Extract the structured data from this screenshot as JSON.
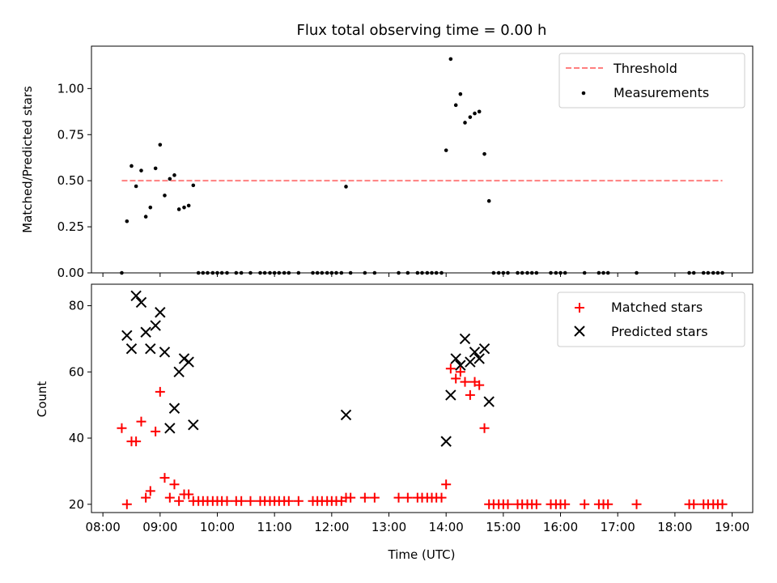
{
  "figure": {
    "title": "Flux total observing time = 0.00 h",
    "xlabel": "Time (UTC)"
  },
  "x_ticks": [
    "08:00",
    "09:00",
    "10:00",
    "11:00",
    "12:00",
    "13:00",
    "14:00",
    "15:00",
    "16:00",
    "17:00",
    "18:00",
    "19:00"
  ],
  "chart_data": [
    {
      "type": "scatter",
      "ylabel": "Matched/Predicted stars",
      "xlim": [
        7.8,
        19.36
      ],
      "ylim": [
        0,
        1.23
      ],
      "y_ticks": [
        "0.00",
        "0.25",
        "0.50",
        "0.75",
        "1.00"
      ],
      "legend_position": "top-right",
      "threshold": {
        "name": "Threshold",
        "y": 0.5,
        "x_range": [
          8.33,
          18.83
        ],
        "color": "#ff7f7f"
      },
      "series": [
        {
          "name": "Measurements",
          "color": "#000000",
          "x": [
            8.33,
            8.42,
            8.5,
            8.58,
            8.67,
            8.75,
            8.83,
            8.92,
            9.0,
            9.08,
            9.17,
            9.25,
            9.33,
            9.42,
            9.5,
            9.58,
            9.67,
            9.75,
            9.83,
            9.92,
            10.0,
            10.08,
            10.17,
            10.33,
            10.42,
            10.58,
            10.75,
            10.83,
            10.92,
            11.0,
            11.08,
            11.17,
            11.25,
            11.42,
            11.67,
            11.75,
            11.83,
            11.92,
            12.0,
            12.08,
            12.17,
            12.25,
            12.33,
            12.58,
            12.75,
            13.17,
            13.33,
            13.5,
            13.58,
            13.67,
            13.75,
            13.83,
            13.92,
            14.0,
            14.08,
            14.17,
            14.25,
            14.33,
            14.42,
            14.5,
            14.58,
            14.67,
            14.75,
            14.83,
            14.92,
            15.0,
            15.08,
            15.25,
            15.33,
            15.42,
            15.5,
            15.58,
            15.83,
            15.92,
            16.0,
            16.08,
            16.42,
            16.67,
            16.75,
            16.83,
            17.33,
            18.25,
            18.33,
            18.5,
            18.58,
            18.67,
            18.75,
            18.83
          ],
          "y": [
            0.0,
            0.28,
            0.58,
            0.47,
            0.555,
            0.305,
            0.355,
            0.567,
            0.695,
            0.42,
            0.51,
            0.53,
            0.345,
            0.355,
            0.365,
            0.475,
            0,
            0,
            0,
            0,
            0,
            0,
            0,
            0,
            0,
            0,
            0,
            0,
            0,
            0,
            0,
            0,
            0,
            0,
            0,
            0,
            0,
            0,
            0,
            0,
            0,
            0.468,
            0,
            0,
            0,
            0,
            0,
            0,
            0,
            0,
            0,
            0,
            0,
            0.665,
            1.16,
            0.91,
            0.97,
            0.815,
            0.845,
            0.865,
            0.875,
            0.645,
            0.39,
            0,
            0,
            0,
            0,
            0,
            0,
            0,
            0,
            0,
            0,
            0,
            0,
            0,
            0,
            0,
            0,
            0,
            0,
            0,
            0,
            0,
            0,
            0,
            0,
            0
          ]
        }
      ]
    },
    {
      "type": "scatter",
      "ylabel": "Count",
      "xlim": [
        7.8,
        19.36
      ],
      "ylim": [
        17.5,
        86.5
      ],
      "y_ticks": [
        "20",
        "40",
        "60",
        "80"
      ],
      "legend_position": "top-right",
      "series": [
        {
          "name": "Matched stars",
          "color": "#ff0000",
          "marker": "plus",
          "x": [
            8.33,
            8.42,
            8.5,
            8.58,
            8.67,
            8.75,
            8.83,
            8.92,
            9.0,
            9.08,
            9.17,
            9.25,
            9.33,
            9.42,
            9.5,
            9.58,
            9.67,
            9.75,
            9.83,
            9.92,
            10.0,
            10.08,
            10.17,
            10.33,
            10.42,
            10.58,
            10.75,
            10.83,
            10.92,
            11.0,
            11.08,
            11.17,
            11.25,
            11.42,
            11.67,
            11.75,
            11.83,
            11.92,
            12.0,
            12.08,
            12.17,
            12.25,
            12.33,
            12.58,
            12.75,
            13.17,
            13.33,
            13.5,
            13.58,
            13.67,
            13.75,
            13.83,
            13.92,
            14.0,
            14.08,
            14.17,
            14.25,
            14.33,
            14.42,
            14.5,
            14.58,
            14.67,
            14.75,
            14.83,
            14.92,
            15.0,
            15.08,
            15.25,
            15.33,
            15.42,
            15.5,
            15.58,
            15.83,
            15.92,
            16.0,
            16.08,
            16.42,
            16.67,
            16.75,
            16.83,
            17.33,
            18.25,
            18.33,
            18.5,
            18.58,
            18.67,
            18.75,
            18.83
          ],
          "y": [
            43,
            20,
            39,
            39,
            45,
            22,
            24,
            42,
            54,
            28,
            22,
            26,
            21,
            23,
            23,
            21,
            21,
            21,
            21,
            21,
            21,
            21,
            21,
            21,
            21,
            21,
            21,
            21,
            21,
            21,
            21,
            21,
            21,
            21,
            21,
            21,
            21,
            21,
            21,
            21,
            21,
            22,
            22,
            22,
            22,
            22,
            22,
            22,
            22,
            22,
            22,
            22,
            22,
            26,
            61,
            58,
            60,
            57,
            53,
            57,
            56,
            43,
            20,
            20,
            20,
            20,
            20,
            20,
            20,
            20,
            20,
            20,
            20,
            20,
            20,
            20,
            20,
            20,
            20,
            20,
            20,
            20,
            20,
            20,
            20,
            20,
            20,
            20
          ]
        },
        {
          "name": "Predicted stars",
          "color": "#000000",
          "marker": "x",
          "x": [
            8.42,
            8.5,
            8.58,
            8.67,
            8.75,
            8.83,
            8.92,
            9.0,
            9.08,
            9.17,
            9.25,
            9.33,
            9.42,
            9.5,
            9.58,
            12.25,
            14.0,
            14.08,
            14.17,
            14.25,
            14.33,
            14.42,
            14.5,
            14.58,
            14.67,
            14.75
          ],
          "y": [
            71,
            67,
            83,
            81,
            72,
            67,
            74,
            78,
            66,
            43,
            49,
            60,
            64,
            63,
            44,
            47,
            39,
            53,
            64,
            62,
            70,
            63,
            66,
            64,
            67,
            51
          ]
        }
      ]
    }
  ]
}
